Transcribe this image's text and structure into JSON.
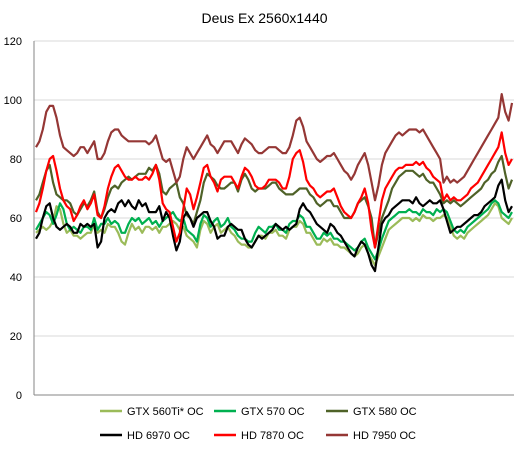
{
  "chart_data": {
    "type": "line",
    "title": "Deus Ex 2560x1440",
    "xlabel": "",
    "ylabel": "",
    "ylim": [
      0,
      120
    ],
    "yticks": [
      0,
      20,
      40,
      60,
      80,
      100,
      120
    ],
    "grid": "horizontal",
    "legend_position": "bottom",
    "series": [
      {
        "name": "GTX 560Ti* OC",
        "color": "#9bbb59",
        "values": [
          55,
          56,
          57,
          56,
          57,
          59,
          64,
          63,
          58,
          55,
          56,
          54,
          54,
          53,
          54,
          55,
          55,
          58,
          55,
          56,
          55,
          58,
          57,
          57,
          55,
          52,
          51,
          55,
          58,
          56,
          57,
          55,
          57,
          57,
          56,
          57,
          55,
          57,
          57,
          58,
          59,
          58,
          56,
          57,
          54,
          53,
          52,
          50,
          56,
          59,
          58,
          55,
          57,
          58,
          55,
          56,
          57,
          55,
          54,
          52,
          51,
          51,
          50,
          50,
          52,
          54,
          54,
          53,
          55,
          55,
          56,
          54,
          54,
          53,
          56,
          57,
          57,
          59,
          58,
          55,
          55,
          53,
          51,
          51,
          53,
          52,
          53,
          51,
          51,
          50,
          50,
          49,
          48,
          47,
          48,
          50,
          51,
          48,
          46,
          44,
          47,
          50,
          53,
          56,
          57,
          58,
          59,
          60,
          60,
          60,
          59,
          60,
          59,
          61,
          60,
          60,
          59,
          60,
          60,
          61,
          60,
          57,
          54,
          53,
          54,
          53,
          55,
          56,
          57,
          58,
          59,
          60,
          61,
          63,
          65,
          64,
          60,
          59,
          58,
          60
        ]
      },
      {
        "name": "GTX 570 OC",
        "color": "#00b050",
        "values": [
          56,
          58,
          60,
          62,
          61,
          58,
          61,
          65,
          63,
          58,
          56,
          57,
          56,
          55,
          57,
          57,
          56,
          60,
          56,
          58,
          58,
          60,
          58,
          59,
          58,
          55,
          55,
          58,
          60,
          59,
          60,
          58,
          59,
          60,
          58,
          59,
          57,
          59,
          60,
          61,
          62,
          60,
          59,
          60,
          56,
          55,
          54,
          52,
          58,
          61,
          60,
          57,
          59,
          60,
          57,
          58,
          60,
          57,
          56,
          54,
          53,
          53,
          52,
          52,
          55,
          57,
          56,
          55,
          57,
          57,
          58,
          56,
          56,
          55,
          58,
          59,
          59,
          61,
          60,
          57,
          57,
          55,
          53,
          53,
          55,
          54,
          55,
          53,
          53,
          52,
          52,
          51,
          50,
          49,
          50,
          52,
          53,
          50,
          48,
          46,
          49,
          53,
          56,
          59,
          60,
          61,
          62,
          62,
          62,
          63,
          62,
          62,
          61,
          63,
          62,
          62,
          61,
          63,
          62,
          63,
          62,
          59,
          56,
          55,
          56,
          55,
          57,
          58,
          59,
          60,
          61,
          62,
          63,
          65,
          66,
          65,
          62,
          61,
          60,
          62
        ]
      },
      {
        "name": "GTX 580 OC",
        "color": "#4f6228",
        "values": [
          66,
          68,
          72,
          76,
          78,
          72,
          68,
          67,
          66,
          66,
          65,
          62,
          61,
          63,
          65,
          64,
          66,
          69,
          62,
          60,
          63,
          67,
          70,
          71,
          70,
          72,
          73,
          74,
          73,
          74,
          75,
          75,
          75,
          77,
          76,
          78,
          75,
          69,
          68,
          70,
          71,
          72,
          67,
          65,
          61,
          60,
          58,
          62,
          66,
          72,
          75,
          74,
          73,
          71,
          70,
          70,
          71,
          72,
          72,
          69,
          73,
          75,
          73,
          70,
          69,
          70,
          70,
          70,
          71,
          72,
          72,
          70,
          69,
          68,
          68,
          68,
          69,
          70,
          70,
          70,
          68,
          67,
          65,
          64,
          65,
          66,
          66,
          64,
          64,
          62,
          60,
          60,
          60,
          62,
          65,
          66,
          67,
          64,
          60,
          50,
          55,
          60,
          63,
          66,
          70,
          72,
          74,
          75,
          76,
          76,
          76,
          75,
          74,
          75,
          73,
          72,
          72,
          70,
          68,
          65,
          66,
          65,
          66,
          65,
          64,
          65,
          66,
          67,
          68,
          69,
          70,
          72,
          73,
          75,
          76,
          79,
          81,
          75,
          70,
          73
        ]
      },
      {
        "name": "HD 6970 OC",
        "color": "#000000",
        "values": [
          53,
          55,
          60,
          64,
          65,
          60,
          57,
          56,
          57,
          58,
          57,
          55,
          55,
          58,
          57,
          58,
          57,
          58,
          50,
          52,
          60,
          62,
          63,
          62,
          65,
          66,
          64,
          66,
          64,
          63,
          66,
          64,
          65,
          62,
          62,
          62,
          64,
          59,
          62,
          60,
          54,
          49,
          52,
          60,
          62,
          60,
          57,
          60,
          61,
          62,
          62,
          59,
          57,
          53,
          54,
          54,
          57,
          58,
          57,
          56,
          56,
          53,
          51,
          50,
          52,
          54,
          53,
          54,
          55,
          56,
          58,
          57,
          56,
          57,
          56,
          57,
          58,
          63,
          65,
          63,
          62,
          60,
          58,
          57,
          56,
          55,
          58,
          57,
          55,
          54,
          52,
          50,
          48,
          47,
          50,
          52,
          51,
          48,
          44,
          42,
          50,
          58,
          60,
          61,
          63,
          64,
          65,
          66,
          66,
          66,
          65,
          67,
          65,
          64,
          65,
          66,
          65,
          65,
          66,
          63,
          59,
          55,
          56,
          57,
          57,
          58,
          59,
          60,
          61,
          61,
          62,
          64,
          65,
          66,
          67,
          71,
          73,
          66,
          62,
          64
        ]
      },
      {
        "name": "HD 7870 OC",
        "color": "#ff0000",
        "values": [
          62,
          65,
          70,
          76,
          80,
          81,
          76,
          70,
          66,
          64,
          63,
          59,
          61,
          64,
          66,
          63,
          65,
          68,
          61,
          60,
          64,
          70,
          74,
          77,
          78,
          76,
          74,
          73,
          73,
          74,
          73,
          73,
          74,
          73,
          75,
          78,
          73,
          65,
          63,
          62,
          57,
          52,
          55,
          63,
          70,
          68,
          63,
          67,
          72,
          77,
          78,
          74,
          72,
          69,
          73,
          74,
          74,
          74,
          72,
          70,
          74,
          77,
          76,
          74,
          71,
          70,
          70,
          71,
          73,
          73,
          73,
          72,
          70,
          70,
          74,
          80,
          82,
          83,
          79,
          73,
          71,
          70,
          68,
          67,
          68,
          69,
          69,
          70,
          67,
          64,
          62,
          61,
          60,
          62,
          65,
          67,
          70,
          65,
          56,
          50,
          58,
          66,
          70,
          72,
          74,
          76,
          77,
          77,
          78,
          78,
          78,
          79,
          78,
          79,
          77,
          76,
          74,
          73,
          72,
          66,
          68,
          66,
          67,
          66,
          66,
          67,
          68,
          70,
          71,
          72,
          74,
          76,
          78,
          80,
          82,
          84,
          89,
          82,
          78,
          80
        ]
      },
      {
        "name": "HD 7950 OC",
        "color": "#953735",
        "values": [
          84,
          86,
          90,
          96,
          98,
          98,
          94,
          88,
          84,
          83,
          82,
          81,
          82,
          84,
          84,
          82,
          84,
          86,
          80,
          80,
          82,
          86,
          89,
          90,
          90,
          88,
          87,
          86,
          86,
          86,
          86,
          86,
          86,
          85,
          86,
          88,
          84,
          80,
          79,
          80,
          76,
          72,
          74,
          80,
          84,
          82,
          80,
          82,
          84,
          86,
          88,
          85,
          84,
          82,
          84,
          86,
          86,
          86,
          84,
          82,
          85,
          87,
          86,
          85,
          83,
          82,
          82,
          83,
          84,
          84,
          84,
          83,
          82,
          82,
          84,
          88,
          93,
          94,
          91,
          86,
          84,
          82,
          80,
          79,
          80,
          81,
          81,
          82,
          80,
          78,
          76,
          75,
          73,
          75,
          78,
          80,
          82,
          78,
          72,
          66,
          71,
          78,
          82,
          84,
          86,
          88,
          89,
          88,
          89,
          90,
          90,
          90,
          89,
          90,
          88,
          86,
          84,
          82,
          80,
          72,
          74,
          72,
          73,
          72,
          73,
          74,
          76,
          78,
          80,
          82,
          84,
          86,
          88,
          90,
          92,
          94,
          102,
          96,
          93,
          99
        ]
      }
    ]
  }
}
